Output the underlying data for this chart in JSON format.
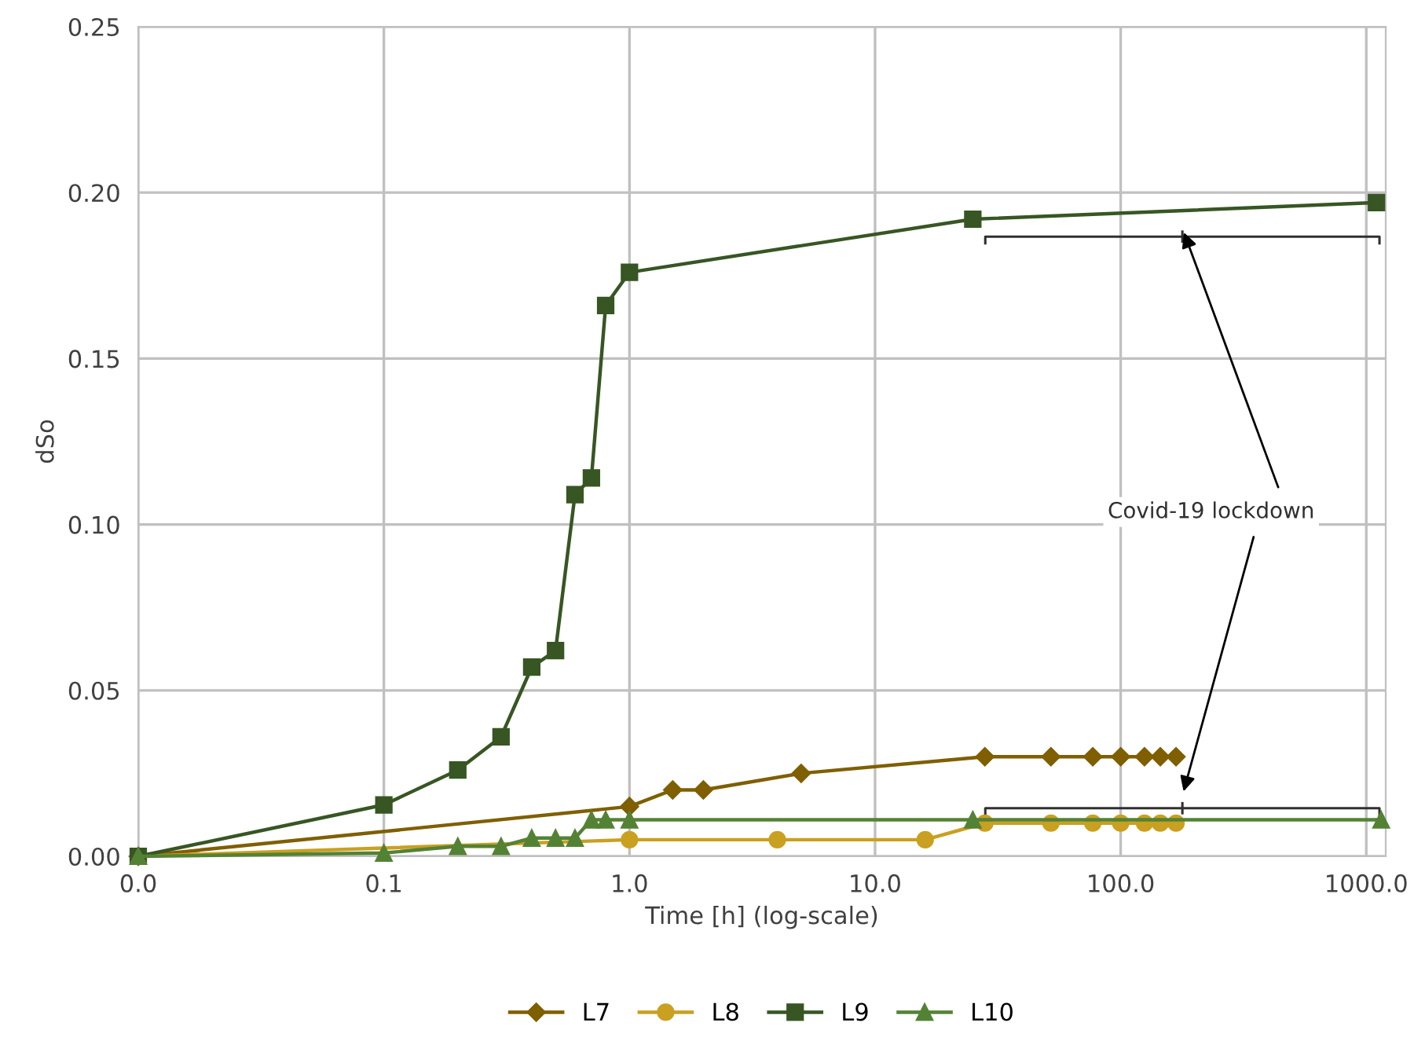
{
  "chart_data": {
    "type": "line",
    "xlabel": "Time [h] (log-scale)",
    "ylabel": "dSo",
    "log": "x",
    "xlim": [
      0.01,
      1200
    ],
    "xticks": [
      {
        "value": 0.01,
        "label": "0.0"
      },
      {
        "value": 0.1,
        "label": "0.1"
      },
      {
        "value": 1,
        "label": "1.0"
      },
      {
        "value": 10,
        "label": "10.0"
      },
      {
        "value": 100,
        "label": "100.0"
      },
      {
        "value": 1000,
        "label": "1000.0"
      }
    ],
    "ylim": [
      0,
      0.25
    ],
    "yticks": [
      {
        "value": 0,
        "label": "0.00"
      },
      {
        "value": 0.05,
        "label": "0.05"
      },
      {
        "value": 0.1,
        "label": "0.10"
      },
      {
        "value": 0.15,
        "label": "0.15"
      },
      {
        "value": 0.2,
        "label": "0.20"
      },
      {
        "value": 0.25,
        "label": "0.25"
      }
    ],
    "grid": true,
    "legend": "bottom",
    "line_style": "solid",
    "series": [
      {
        "name": "L7",
        "color": "#7f5f00",
        "marker": "diamond",
        "x": [
          0.01,
          1,
          1.5,
          2,
          5,
          28,
          52,
          77,
          100,
          125,
          145,
          168
        ],
        "values": [
          0,
          0.015,
          0.02,
          0.02,
          0.025,
          0.03,
          0.03,
          0.03,
          0.03,
          0.03,
          0.03,
          0.03
        ]
      },
      {
        "name": "L8",
        "color": "#c9a020",
        "marker": "circle",
        "x": [
          0.01,
          1,
          4,
          16,
          28,
          52,
          77,
          100,
          125,
          145,
          168
        ],
        "values": [
          0,
          0.005,
          0.005,
          0.005,
          0.01,
          0.01,
          0.01,
          0.01,
          0.01,
          0.01,
          0.01
        ]
      },
      {
        "name": "L9",
        "color": "#375623",
        "marker": "square",
        "x": [
          0.01,
          0.1,
          0.2,
          0.3,
          0.4,
          0.5,
          0.6,
          0.7,
          0.8,
          1,
          25,
          1100
        ],
        "values": [
          0,
          0.0155,
          0.026,
          0.036,
          0.057,
          0.062,
          0.109,
          0.114,
          0.166,
          0.176,
          0.192,
          0.197
        ]
      },
      {
        "name": "L10",
        "color": "#548235",
        "marker": "triangle",
        "x": [
          0.01,
          0.1,
          0.2,
          0.3,
          0.4,
          0.5,
          0.6,
          0.7,
          0.8,
          1,
          25,
          1150
        ],
        "values": [
          0,
          0.001,
          0.003,
          0.003,
          0.0055,
          0.0055,
          0.0055,
          0.011,
          0.011,
          0.011,
          0.011,
          0.011
        ]
      }
    ],
    "annotations": [
      "Covid-19 lockdown"
    ]
  }
}
